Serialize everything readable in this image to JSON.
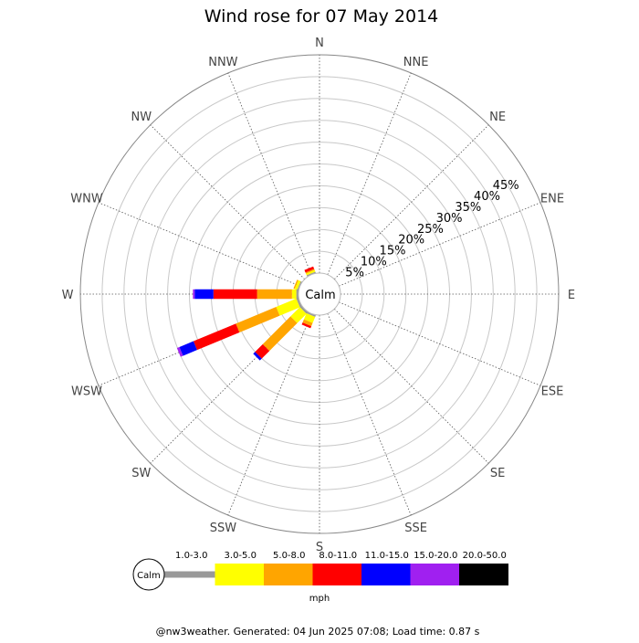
{
  "title": "Wind rose for 07 May 2014",
  "footer": "@nw3weather. Generated: 04 Jun 2025 07:08; Load time: 0.87 s",
  "chart_data": {
    "type": "windrose",
    "title": "Wind rose for 07 May 2014",
    "directions": [
      "N",
      "NNE",
      "NE",
      "ENE",
      "E",
      "ESE",
      "SE",
      "SSE",
      "S",
      "SSW",
      "SW",
      "WSW",
      "W",
      "WNW",
      "NW",
      "NNW"
    ],
    "radial_ticks": [
      "5%",
      "10%",
      "15%",
      "20%",
      "25%",
      "30%",
      "35%",
      "40%",
      "45%"
    ],
    "radial_values": [
      5,
      10,
      15,
      20,
      25,
      30,
      35,
      40,
      45
    ],
    "rmax": 50,
    "calm_label": "Calm",
    "unit": "mph",
    "bins": [
      {
        "label": "1.0-3.0",
        "color": "#999999"
      },
      {
        "label": "3.0-5.0",
        "color": "#ffff00"
      },
      {
        "label": "5.0-8.0",
        "color": "#ffa500"
      },
      {
        "label": "8.0-11.0",
        "color": "#ff0000"
      },
      {
        "label": "11.0-15.0",
        "color": "#0000ff"
      },
      {
        "label": "15.0-20.0",
        "color": "#a020f0"
      },
      {
        "label": "20.0-50.0",
        "color": "#000000"
      }
    ],
    "sectors": [
      {
        "direction": "NNW",
        "segments": [
          0.3,
          0.4,
          0.3,
          0.6,
          0,
          0,
          0
        ]
      },
      {
        "direction": "WNW",
        "segments": [
          0.3,
          0.6,
          0.3,
          0,
          0,
          0,
          0
        ]
      },
      {
        "direction": "W",
        "segments": [
          0.5,
          1.0,
          8.0,
          10.0,
          4.3,
          0.4,
          0
        ]
      },
      {
        "direction": "WSW",
        "segments": [
          0.5,
          5.0,
          10.0,
          10.5,
          3.5,
          0.6,
          0
        ]
      },
      {
        "direction": "SW",
        "segments": [
          0.5,
          3.0,
          9.0,
          2.5,
          0.6,
          0,
          0
        ]
      },
      {
        "direction": "SSW",
        "segments": [
          0.4,
          1.5,
          0.8,
          0.5,
          0,
          0,
          0
        ]
      }
    ]
  }
}
